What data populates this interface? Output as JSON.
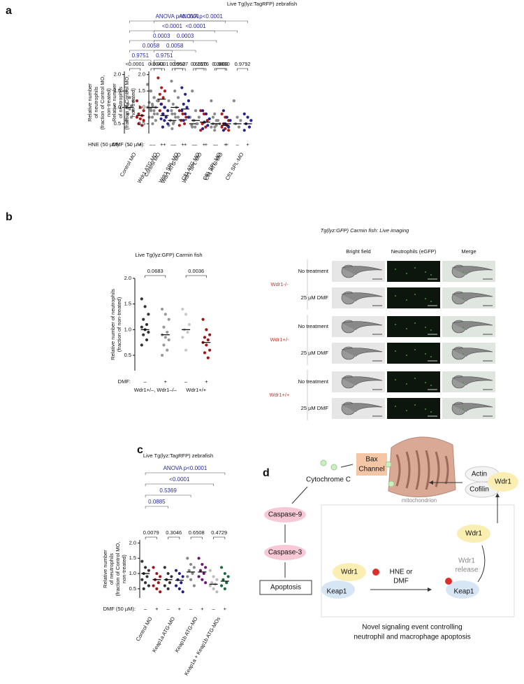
{
  "title": "Live Tg(lyz:TagRFP) zebrafish",
  "panel_labels": [
    "a",
    "b",
    "c",
    "d"
  ],
  "chart_data": [
    {
      "type": "dot",
      "ylabel": [
        "Relative number",
        "of neutrophils",
        "(fraction of Control MO,",
        "non-treated)"
      ],
      "ylim": [
        0.2,
        2.1
      ],
      "yticks": [
        0.5,
        {
          "value": 1,
          "label": "1.0"
        },
        1.5,
        {
          "value": 2,
          "label": "2.0"
        }
      ],
      "treatment_label": "HNE (50 µM):",
      "treatment_marks": [
        "–",
        "+",
        "–",
        "+",
        "–",
        "+",
        "–",
        "+",
        "–",
        "+"
      ],
      "categories": [
        "Control MO",
        "Wdr1 ATG-MO",
        "Wdr1 SPL-MO",
        "Cfl1 ATG-MO",
        "Cfl1 SPL-MO"
      ],
      "pair_pvalues": [
        "<0.0001",
        "0.3043",
        "0.9950",
        "0.6520",
        "0.3808"
      ],
      "comparisons": [
        "0.9751",
        "0.0058",
        "0.0003",
        "<0.0001",
        "ANOVA p<0.0001"
      ],
      "columns": [
        {
          "color": "#8a8a8a",
          "mean": 1.0,
          "points": [
            1.5,
            1.3,
            1.2,
            1.1,
            1.05,
            1.0,
            0.95,
            0.9,
            0.8,
            0.7,
            0.6
          ]
        },
        {
          "color": "#b01c1c",
          "mean": 0.75,
          "points": [
            1.2,
            1.0,
            0.9,
            0.8,
            0.75,
            0.7,
            0.65,
            0.6,
            0.5,
            0.45
          ]
        },
        {
          "color": "#8a8a8a",
          "mean": 1.0,
          "points": [
            1.7,
            1.5,
            1.3,
            1.15,
            1.05,
            1.0,
            0.9,
            0.8,
            0.7,
            0.5
          ]
        },
        {
          "color": "#b01c1c",
          "mean": 1.25,
          "points": [
            1.9,
            1.6,
            1.5,
            1.4,
            1.3,
            1.2,
            1.1,
            1.0,
            0.9,
            0.8
          ]
        },
        {
          "color": "#8a8a8a",
          "mean": 0.6,
          "points": [
            1.2,
            0.8,
            0.7,
            0.6,
            0.55,
            0.45,
            0.35
          ]
        },
        {
          "color": "#b01c1c",
          "mean": 0.62,
          "points": [
            0.9,
            0.8,
            0.7,
            0.6,
            0.5,
            0.45
          ]
        },
        {
          "color": "#8a8a8a",
          "mean": 0.5,
          "points": [
            0.7,
            0.6,
            0.5,
            0.45,
            0.4
          ]
        },
        {
          "color": "#b01c1c",
          "mean": 0.55,
          "points": [
            0.9,
            0.8,
            0.6,
            0.5,
            0.4,
            0.3
          ]
        },
        {
          "color": "#8a8a8a",
          "mean": 0.5,
          "points": [
            1.2,
            0.8,
            0.6,
            0.5,
            0.45,
            0.4,
            0.3
          ]
        },
        {
          "color": "#b01c1c",
          "mean": 0.45,
          "points": [
            0.8,
            0.7,
            0.6,
            0.5,
            0.45,
            0.4,
            0.35,
            0.3
          ]
        }
      ]
    },
    {
      "type": "dot",
      "ylabel": [
        "Relative number",
        "of neutrophils",
        "(fraction of Control MO,",
        "non-treated)"
      ],
      "ylim": [
        0.2,
        2.1
      ],
      "yticks": [
        0.5,
        {
          "value": 1,
          "label": "1.0"
        },
        1.5,
        {
          "value": 2,
          "label": "2.0"
        }
      ],
      "treatment_label": "DMF (50 µM):",
      "treatment_marks": [
        "–",
        "+",
        "–",
        "+",
        "–",
        "+",
        "–",
        "+",
        "–",
        "+"
      ],
      "categories": [
        "Control MO",
        "Wdr1 ATG-MO",
        "Wdr1 SPL-MO",
        "Cfl1 ATG-MO",
        "Cfl1 SPL-MO"
      ],
      "pair_pvalues": [
        "<0.0001",
        "0.9527",
        "0.1576",
        "0.9860",
        "0.9792"
      ],
      "comparisons": [
        "0.9751",
        "0.0058",
        "0.0003",
        "<0.0001",
        "ANOVA p<0.0001"
      ],
      "columns": [
        {
          "color": "#8a8a8a",
          "mean": 1.0,
          "points": [
            1.5,
            1.3,
            1.2,
            1.1,
            1.0,
            0.95,
            0.9,
            0.8,
            0.7,
            0.6
          ]
        },
        {
          "color": "#25258a",
          "mean": 0.75,
          "points": [
            1.1,
            1.0,
            0.9,
            0.8,
            0.7,
            0.65,
            0.6,
            0.5,
            0.4
          ]
        },
        {
          "color": "#8a8a8a",
          "mean": 1.0,
          "points": [
            1.8,
            1.5,
            1.3,
            1.1,
            1.0,
            0.9,
            0.8,
            0.7,
            0.5
          ]
        },
        {
          "color": "#25258a",
          "mean": 0.95,
          "points": [
            1.6,
            1.4,
            1.2,
            1.1,
            1.0,
            0.9,
            0.8,
            0.7,
            0.6
          ]
        },
        {
          "color": "#8a8a8a",
          "mean": 0.6,
          "points": [
            1.5,
            0.9,
            0.7,
            0.6,
            0.5,
            0.4
          ]
        },
        {
          "color": "#25258a",
          "mean": 0.55,
          "points": [
            0.9,
            0.8,
            0.65,
            0.55,
            0.45,
            0.35
          ]
        },
        {
          "color": "#8a8a8a",
          "mean": 0.5,
          "points": [
            0.7,
            0.6,
            0.5,
            0.4
          ]
        },
        {
          "color": "#25258a",
          "mean": 0.5,
          "points": [
            0.9,
            0.7,
            0.6,
            0.5,
            0.4,
            0.3
          ]
        },
        {
          "color": "#8a8a8a",
          "mean": 0.5,
          "points": [
            1.2,
            0.7,
            0.6,
            0.5,
            0.4
          ]
        },
        {
          "color": "#25258a",
          "mean": 0.5,
          "points": [
            0.8,
            0.7,
            0.6,
            0.5,
            0.4,
            0.3
          ]
        }
      ]
    },
    {
      "type": "dot",
      "title": "Live Tg(lyz:GFP) Carmin fish",
      "ylabel": [
        "Relative number of neutrophils",
        "(fraction of non-treated)"
      ],
      "ylim": [
        0.2,
        2.0
      ],
      "yticks": [
        0.5,
        {
          "value": 1,
          "label": "1.0"
        },
        1.5,
        {
          "value": 2,
          "label": "2.0"
        }
      ],
      "treatment_label": "DMF:",
      "treatment_marks": [
        "–",
        "+",
        "–",
        "+"
      ],
      "categories": [
        "Wdr1+/–, Wdr1–/–",
        "Wdr1+/+"
      ],
      "pair_pvalues": [
        "0.0683",
        "0.0036"
      ],
      "comparisons": [],
      "columns": [
        {
          "color": "#333333",
          "mean": 1.0,
          "points": [
            1.6,
            1.45,
            1.3,
            1.2,
            1.1,
            1.05,
            1.0,
            0.95,
            0.9,
            0.8,
            0.7
          ]
        },
        {
          "color": "#999999",
          "mean": 0.9,
          "points": [
            1.4,
            1.3,
            1.2,
            1.05,
            0.95,
            0.9,
            0.85,
            0.8,
            0.7,
            0.6,
            0.5
          ]
        },
        {
          "color": "#c8c8c8",
          "mean": 1.0,
          "points": [
            1.4,
            1.3,
            1.1,
            1.0,
            0.95,
            0.85,
            0.6
          ]
        },
        {
          "color": "#a01414",
          "mean": 0.75,
          "points": [
            1.2,
            1.0,
            0.9,
            0.85,
            0.8,
            0.75,
            0.7,
            0.6,
            0.55,
            0.45
          ]
        }
      ]
    },
    {
      "type": "dot",
      "title": "Live Tg(lyz:TagRFP) zebrafish",
      "ylabel": [
        "Relative number",
        "of neutrophils",
        "(fraction of Control MO,",
        "non-treated)"
      ],
      "ylim": [
        0.2,
        2.1
      ],
      "yticks": [
        0.5,
        {
          "value": 1,
          "label": "1.0"
        },
        1.5,
        {
          "value": 2,
          "label": "2.0"
        }
      ],
      "treatment_label": "DMF (50 µM):",
      "treatment_marks": [
        "–",
        "+",
        "–",
        "+",
        "–",
        "+",
        "–",
        "+"
      ],
      "categories": [
        "Control MO",
        "Keap1a ATG-MO",
        "Keap1b ATG-MO",
        "Keap1a + Keap1b ATG-MOs"
      ],
      "pair_pvalues": [
        "0.0079",
        "0.3046",
        "0.6508",
        "0.4729"
      ],
      "comparisons": [
        "0.0885",
        "0.5369",
        "<0.0001",
        "ANOVA p<0.0001"
      ],
      "columns": [
        {
          "color": "#333333",
          "mean": 1.0,
          "points": [
            1.4,
            1.2,
            1.1,
            1.0,
            0.9,
            0.8,
            0.7,
            0.6,
            0.5
          ]
        },
        {
          "color": "#a01414",
          "mean": 0.8,
          "points": [
            1.2,
            1.0,
            0.9,
            0.8,
            0.7,
            0.6,
            0.5,
            0.4
          ]
        },
        {
          "color": "#333333",
          "mean": 0.8,
          "points": [
            1.2,
            1.0,
            0.9,
            0.8,
            0.7,
            0.6,
            0.5
          ]
        },
        {
          "color": "#1f1f80",
          "mean": 0.78,
          "points": [
            1.1,
            1.0,
            0.9,
            0.8,
            0.7,
            0.6,
            0.5,
            0.4
          ]
        },
        {
          "color": "#888888",
          "mean": 1.05,
          "points": [
            1.5,
            1.3,
            1.2,
            1.1,
            1.0,
            0.9,
            0.8,
            0.6
          ]
        },
        {
          "color": "#6a1a6a",
          "mean": 1.05,
          "points": [
            1.5,
            1.3,
            1.2,
            1.1,
            1.0,
            0.9,
            0.8,
            0.7
          ]
        },
        {
          "color": "#bbbbbb",
          "mean": 0.65,
          "points": [
            1.1,
            0.9,
            0.8,
            0.7,
            0.65,
            0.6,
            0.5,
            0.4
          ]
        },
        {
          "color": "#1a6b3a",
          "mean": 0.75,
          "points": [
            1.2,
            1.0,
            0.9,
            0.8,
            0.7,
            0.6,
            0.5
          ]
        }
      ]
    }
  ],
  "imaging": {
    "title": "Tg(lyz:GFP) Carmin fish: Live imaging",
    "columns": [
      "Bright field",
      "Neutrophils (eGFP)",
      "Merge"
    ],
    "groups": [
      {
        "label": "Wdr1-/-",
        "rows": [
          "No treatment",
          "25 µM DMF"
        ]
      },
      {
        "label": "Wdr1+/-",
        "rows": [
          "No treatment",
          "25 µM DMF"
        ]
      },
      {
        "label": "Wdr1+/+",
        "rows": [
          "No treatment",
          "25 µM DMF"
        ]
      }
    ]
  },
  "diagram": {
    "bax": "Bax",
    "channel": "Channel",
    "cytochrome": "Cytochrome C",
    "mitochondrion": "mitochondrion",
    "actin": "Actin",
    "cofilin": "Cofilin",
    "wdr1_top": "Wdr1",
    "caspase9": "Caspase-9",
    "caspase3": "Caspase-3",
    "apoptosis": "Apoptosis",
    "wdr1_free": "Wdr1",
    "wdr1_bound": "Wdr1",
    "keap1_left": "Keap1",
    "keap1_right": "Keap1",
    "treatment": [
      "HNE or",
      "DMF"
    ],
    "release": [
      "Wdr1",
      "release"
    ],
    "caption": [
      "Novel signaling event controlling",
      "neutrophil and macrophage apoptosis"
    ]
  }
}
